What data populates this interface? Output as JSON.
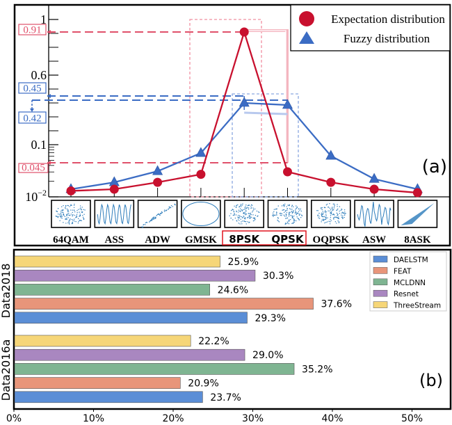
{
  "chart_data": [
    {
      "type": "line",
      "panel_label": "(a)",
      "categories": [
        "64QAM",
        "ASS",
        "ADW",
        "GMSK",
        "8PSK",
        "QPSK",
        "OQPSK",
        "ASW",
        "8ASK"
      ],
      "highlighted_categories": [
        "8PSK",
        "QPSK"
      ],
      "y_scale": "piecewise (linear above 0.1, log below 0.1)",
      "ylim": [
        0.01,
        1
      ],
      "y_ticks": [
        {
          "value": 1,
          "label": "1"
        },
        {
          "value": 0.6,
          "label": "0.6"
        },
        {
          "value": 0.1,
          "label": "0.1"
        },
        {
          "value": 0.01,
          "label": "10",
          "sup": "−2"
        }
      ],
      "series": [
        {
          "name": "Expectation distribution",
          "color": "#c8102e",
          "marker": "circle",
          "values": [
            0.013,
            0.014,
            0.019,
            0.027,
            0.91,
            0.045,
            0.019,
            0.014,
            0.012
          ]
        },
        {
          "name": "Fuzzy distribution",
          "color": "#3b6cc4",
          "marker": "triangle",
          "values": [
            0.014,
            0.019,
            0.031,
            0.069,
            0.45,
            0.42,
            0.061,
            0.022,
            0.014
          ]
        }
      ],
      "annotations": [
        {
          "label": "0.91",
          "value": 0.91,
          "color": "#e0506a",
          "target": "8PSK"
        },
        {
          "label": "0.45",
          "value": 0.45,
          "color": "#3b6cc4",
          "target": "8PSK"
        },
        {
          "label": "0.42",
          "value": 0.42,
          "color": "#3b6cc4",
          "target": "QPSK"
        },
        {
          "label": "0.045",
          "value": 0.045,
          "color": "#e0506a",
          "target": "QPSK"
        }
      ],
      "legend_position": "top-right"
    },
    {
      "type": "bar",
      "orientation": "horizontal",
      "panel_label": "(b)",
      "categories": [
        "Data2018",
        "Data2016a"
      ],
      "xlim": [
        0,
        55
      ],
      "x_ticks": [
        "0%",
        "10%",
        "20%",
        "30%",
        "40%",
        "50%"
      ],
      "series": [
        {
          "name": "DAELSTM",
          "color": "#5b8ed6",
          "values": [
            29.3,
            23.7
          ],
          "labels": [
            "29.3%",
            "23.7%"
          ]
        },
        {
          "name": "FEAT",
          "color": "#e8957a",
          "values": [
            37.6,
            20.9
          ],
          "labels": [
            "37.6%",
            "20.9%"
          ]
        },
        {
          "name": "MCLDNN",
          "color": "#7fb592",
          "values": [
            24.6,
            35.2
          ],
          "labels": [
            "24.6%",
            "35.2%"
          ]
        },
        {
          "name": "Resnet",
          "color": "#a987c0",
          "values": [
            30.3,
            29.0
          ],
          "labels": [
            "30.3%",
            "29.0%"
          ]
        },
        {
          "name": "ThreeStream",
          "color": "#f6d678",
          "values": [
            25.9,
            22.2
          ],
          "labels": [
            "25.9%",
            "22.2%"
          ]
        }
      ],
      "legend_position": "top-right"
    }
  ]
}
